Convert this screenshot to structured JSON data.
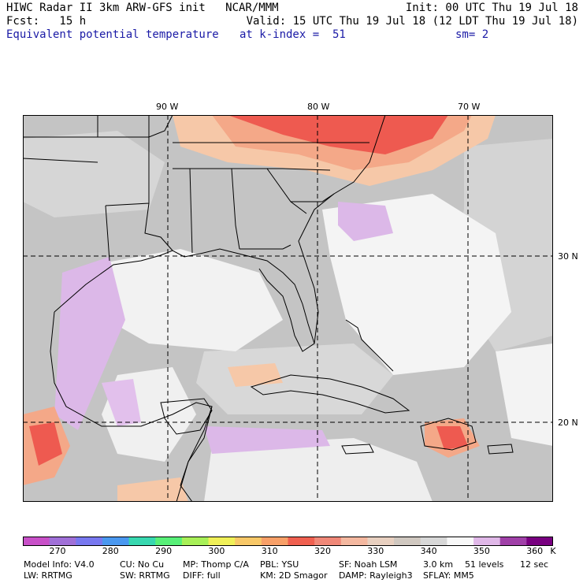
{
  "header": {
    "line1_left": "HIWC Radar II 3km ARW-GFS init   NCAR/MMM",
    "line1_right": "Init: 00 UTC Thu 19 Jul 18",
    "line2_left": "Fcst:   15 h",
    "line2_right": "Valid: 15 UTC Thu 19 Jul 18 (12 LDT Thu 19 Jul 18)",
    "field_name": "Equivalent potential temperature",
    "level": "at k-index =  51",
    "smoothing": "sm= 2"
  },
  "map": {
    "longitude_labels": [
      "90 W",
      "80 W",
      "70 W"
    ],
    "latitude_labels": [
      "30 N",
      "20 N"
    ],
    "colors": {
      "land_gray": "#bdbdbd",
      "light_gray": "#d8d8d8",
      "white_cloud": "#f4f4f4",
      "lavender": "#dcb8e8",
      "salmon": "#f4a888",
      "red": "#ee5a50",
      "peach": "#f6c8a8"
    }
  },
  "legend": {
    "unit": "K",
    "labels": [
      "270",
      "280",
      "290",
      "300",
      "310",
      "320",
      "330",
      "340",
      "350",
      "360"
    ],
    "colors": [
      "#c850c8",
      "#a070d8",
      "#7878f0",
      "#4a98f0",
      "#38d8b0",
      "#58f078",
      "#a8f058",
      "#f0f058",
      "#f8c868",
      "#f8a068",
      "#f06050",
      "#f08878",
      "#f4b8a0",
      "#e8d0c0",
      "#d0c8c0",
      "#d8d8d8",
      "#f8f8f8",
      "#e0b8e8",
      "#a040a8",
      "#780080"
    ]
  },
  "footer": {
    "line1": [
      "Model Info: V4.0",
      "CU: No Cu",
      "MP: Thomp C/A",
      "PBL: YSU",
      "SF: Noah LSM",
      "3.0 km",
      "51 levels",
      "12 sec"
    ],
    "line2": [
      "LW: RRTMG",
      "SW: RRTMG",
      "DIFF: full",
      "KM: 2D Smagor",
      "DAMP: Rayleigh3",
      "SFLAY: MM5"
    ]
  }
}
